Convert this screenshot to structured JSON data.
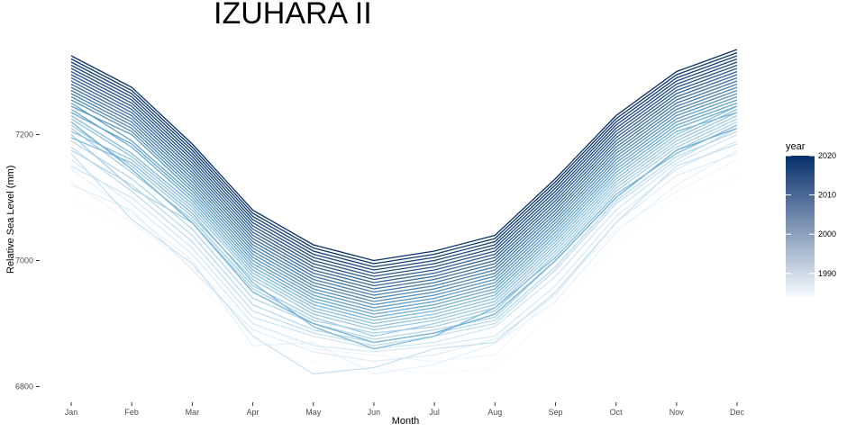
{
  "chart_data": {
    "type": "line",
    "title": "IZUHARA II",
    "xlabel": "Month",
    "ylabel": "Relative Sea Level (mm)",
    "categories": [
      "Jan",
      "Feb",
      "Mar",
      "Apr",
      "May",
      "Jun",
      "Jul",
      "Aug",
      "Sep",
      "Oct",
      "Nov",
      "Dec"
    ],
    "y_ticks": [
      6800,
      7000,
      7200
    ],
    "ylim": [
      6785,
      7335
    ],
    "grid": false,
    "legend": {
      "title": "year",
      "position": "right",
      "ticks": [
        1990,
        2000,
        2010,
        2020
      ],
      "range": [
        1984,
        2020
      ],
      "color_low": "#f7fbff",
      "color_high": "#08306b"
    },
    "series": [
      {
        "year": 1984,
        "values": [
          7098,
          7046,
          6970,
          6880,
          6840,
          6830,
          6820,
          6830,
          6920,
          7030,
          7100,
          7130
        ]
      },
      {
        "year": 1985,
        "values": [
          7125,
          7060,
          6990,
          6900,
          6860,
          6850,
          6840,
          6850,
          6950,
          7050,
          7110,
          7160
        ]
      },
      {
        "year": 1986,
        "values": [
          7145,
          7075,
          7000,
          6865,
          6870,
          6820,
          6835,
          6868,
          6935,
          7045,
          7120,
          7175
        ]
      },
      {
        "year": 1987,
        "values": [
          7120,
          7080,
          6985,
          6890,
          6855,
          6840,
          6850,
          6875,
          6945,
          7060,
          7135,
          7170
        ]
      },
      {
        "year": 1988,
        "values": [
          7160,
          7090,
          7010,
          6900,
          6865,
          6855,
          6865,
          6880,
          6960,
          7070,
          7145,
          7190
        ]
      },
      {
        "year": 1989,
        "values": [
          7150,
          7100,
          7020,
          6910,
          6880,
          6860,
          6870,
          6895,
          6975,
          7080,
          7155,
          7200
        ]
      },
      {
        "year": 1990,
        "values": [
          7170,
          7065,
          6995,
          6880,
          6820,
          6830,
          6860,
          6870,
          6950,
          7060,
          7150,
          7185
        ]
      },
      {
        "year": 1991,
        "values": [
          7180,
          7110,
          7030,
          6920,
          6885,
          6865,
          6880,
          6900,
          6985,
          7090,
          7160,
          7210
        ]
      },
      {
        "year": 1992,
        "values": [
          7175,
          7120,
          7040,
          6930,
          6890,
          6870,
          6885,
          6905,
          6990,
          7095,
          7165,
          7205
        ]
      },
      {
        "year": 1993,
        "values": [
          7190,
          7130,
          7050,
          6940,
          6900,
          6875,
          6890,
          6910,
          7000,
          7100,
          7175,
          7220
        ]
      },
      {
        "year": 1994,
        "values": [
          7200,
          7115,
          7060,
          6955,
          6905,
          6885,
          6895,
          6920,
          7010,
          7110,
          7180,
          7225
        ]
      },
      {
        "year": 1995,
        "values": [
          7210,
          7140,
          7065,
          6960,
          6910,
          6880,
          6900,
          6925,
          7015,
          7115,
          7185,
          7230
        ]
      },
      {
        "year": 1996,
        "values": [
          7215,
          7150,
          7070,
          6970,
          6915,
          6890,
          6905,
          6930,
          7020,
          7120,
          7190,
          7235
        ]
      },
      {
        "year": 1997,
        "values": [
          7205,
          7160,
          7080,
          6975,
          6920,
          6895,
          6910,
          6935,
          7025,
          7125,
          7195,
          7240
        ]
      },
      {
        "year": 1998,
        "values": [
          7225,
          7165,
          7085,
          6980,
          6925,
          6900,
          6915,
          6940,
          7030,
          7130,
          7200,
          7245
        ]
      },
      {
        "year": 1999,
        "values": [
          7195,
          7155,
          7075,
          6965,
          6895,
          6860,
          6880,
          6925,
          7005,
          7105,
          7170,
          7215
        ]
      },
      {
        "year": 2000,
        "values": [
          7230,
          7170,
          7090,
          6985,
          6930,
          6905,
          6920,
          6945,
          7035,
          7135,
          7205,
          7235
        ]
      },
      {
        "year": 2001,
        "values": [
          7220,
          7145,
          7060,
          6950,
          6900,
          6870,
          6885,
          6915,
          7000,
          7100,
          7175,
          7210
        ]
      },
      {
        "year": 2002,
        "values": [
          7240,
          7180,
          7095,
          6990,
          6935,
          6910,
          6925,
          6950,
          7040,
          7140,
          7210,
          7245
        ]
      },
      {
        "year": 2003,
        "values": [
          7235,
          7185,
          7100,
          6995,
          6940,
          6915,
          6930,
          6955,
          7045,
          7145,
          7215,
          7250
        ]
      },
      {
        "year": 2004,
        "values": [
          7250,
          7190,
          7105,
          7000,
          6945,
          6920,
          6935,
          6960,
          7050,
          7150,
          7220,
          7255
        ]
      },
      {
        "year": 2005,
        "values": [
          7245,
          7200,
          7110,
          7005,
          6950,
          6925,
          6940,
          6965,
          7055,
          7155,
          7225,
          7260
        ]
      },
      {
        "year": 2006,
        "values": [
          7255,
          7205,
          7115,
          7010,
          6955,
          6930,
          6945,
          6970,
          7060,
          7160,
          7230,
          7265
        ]
      },
      {
        "year": 2007,
        "values": [
          7260,
          7210,
          7120,
          7015,
          6960,
          6935,
          6950,
          6975,
          7065,
          7165,
          7235,
          7270
        ]
      },
      {
        "year": 2008,
        "values": [
          7265,
          7215,
          7125,
          7020,
          6965,
          6940,
          6955,
          6980,
          7070,
          7170,
          7240,
          7275
        ]
      },
      {
        "year": 2009,
        "values": [
          7270,
          7220,
          7130,
          7025,
          6970,
          6945,
          6960,
          6985,
          7075,
          7175,
          7245,
          7280
        ]
      },
      {
        "year": 2010,
        "values": [
          7275,
          7225,
          7135,
          7030,
          6975,
          6950,
          6965,
          6990,
          7080,
          7180,
          7250,
          7285
        ]
      },
      {
        "year": 2011,
        "values": [
          7280,
          7230,
          7140,
          7035,
          6980,
          6955,
          6970,
          6995,
          7085,
          7185,
          7255,
          7290
        ]
      },
      {
        "year": 2012,
        "values": [
          7285,
          7235,
          7145,
          7040,
          6985,
          6960,
          6975,
          7000,
          7090,
          7190,
          7260,
          7295
        ]
      },
      {
        "year": 2013,
        "values": [
          7290,
          7240,
          7150,
          7045,
          6990,
          6965,
          6980,
          7005,
          7095,
          7195,
          7265,
          7300
        ]
      },
      {
        "year": 2014,
        "values": [
          7295,
          7245,
          7155,
          7050,
          6995,
          6970,
          6985,
          7010,
          7100,
          7200,
          7270,
          7305
        ]
      },
      {
        "year": 2015,
        "values": [
          7300,
          7250,
          7160,
          7055,
          7000,
          6975,
          6990,
          7015,
          7105,
          7205,
          7275,
          7310
        ]
      },
      {
        "year": 2016,
        "values": [
          7305,
          7255,
          7165,
          7060,
          7005,
          6980,
          6995,
          7020,
          7110,
          7210,
          7280,
          7315
        ]
      },
      {
        "year": 2017,
        "values": [
          7310,
          7260,
          7170,
          7065,
          7010,
          6985,
          7000,
          7025,
          7115,
          7215,
          7285,
          7320
        ]
      },
      {
        "year": 2018,
        "values": [
          7315,
          7265,
          7175,
          7070,
          7015,
          6990,
          7005,
          7030,
          7120,
          7220,
          7290,
          7325
        ]
      },
      {
        "year": 2019,
        "values": [
          7320,
          7270,
          7180,
          7075,
          7020,
          6995,
          7010,
          7035,
          7125,
          7225,
          7295,
          7330
        ]
      },
      {
        "year": 2020,
        "values": [
          7325,
          7275,
          7185,
          7080,
          7025,
          7000,
          7015,
          7040,
          7130,
          7230,
          7300,
          7335
        ]
      }
    ]
  }
}
